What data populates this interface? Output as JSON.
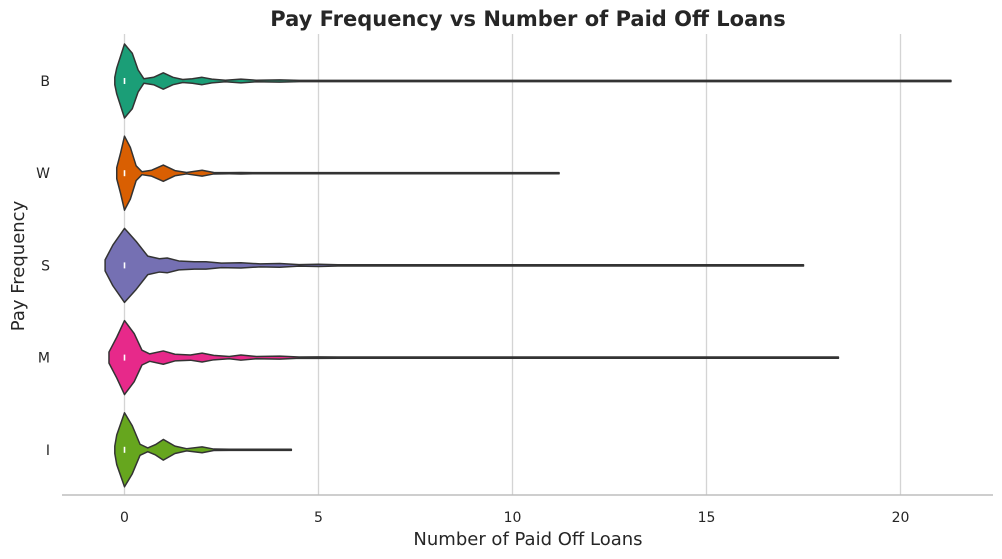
{
  "chart_data": {
    "type": "violin",
    "title": "Pay Frequency vs Number of Paid Off Loans",
    "xlabel": "Number of Paid Off Loans",
    "ylabel": "Pay Frequency",
    "xlim": [
      -1.6,
      22.5
    ],
    "xticks": [
      0,
      5,
      10,
      15,
      20
    ],
    "grid": "vertical",
    "categories": [
      "B",
      "W",
      "S",
      "M",
      "I"
    ],
    "series": [
      {
        "category": "B",
        "color": "#1b9e77",
        "max": 21.3,
        "median": 0,
        "profile": [
          [
            -0.25,
            0.1
          ],
          [
            -0.2,
            0.35
          ],
          [
            0,
            1.0
          ],
          [
            0.2,
            0.75
          ],
          [
            0.35,
            0.3
          ],
          [
            0.5,
            0.06
          ],
          [
            0.75,
            0.1
          ],
          [
            1,
            0.22
          ],
          [
            1.25,
            0.1
          ],
          [
            1.5,
            0.04
          ],
          [
            1.75,
            0.06
          ],
          [
            2,
            0.1
          ],
          [
            2.25,
            0.05
          ],
          [
            2.6,
            0.02
          ],
          [
            3,
            0.05
          ],
          [
            3.4,
            0.02
          ],
          [
            4,
            0.03
          ],
          [
            4.5,
            0.01
          ],
          [
            5,
            0.015
          ],
          [
            5.5,
            0.005
          ],
          [
            6,
            0.005
          ],
          [
            21.3,
            0.0
          ]
        ]
      },
      {
        "category": "W",
        "color": "#d95f02",
        "max": 11.2,
        "median": 0,
        "profile": [
          [
            -0.2,
            0.15
          ],
          [
            -0.1,
            0.55
          ],
          [
            0,
            1.0
          ],
          [
            0.15,
            0.7
          ],
          [
            0.3,
            0.2
          ],
          [
            0.45,
            0.04
          ],
          [
            0.7,
            0.08
          ],
          [
            1,
            0.22
          ],
          [
            1.3,
            0.07
          ],
          [
            1.6,
            0.02
          ],
          [
            2,
            0.08
          ],
          [
            2.3,
            0.02
          ],
          [
            2.7,
            0.005
          ],
          [
            3,
            0.02
          ],
          [
            3.3,
            0.005
          ],
          [
            11.2,
            0.0
          ]
        ]
      },
      {
        "category": "S",
        "color": "#7570b3",
        "max": 17.5,
        "median": 0,
        "profile": [
          [
            -0.5,
            0.15
          ],
          [
            -0.3,
            0.55
          ],
          [
            0,
            1.0
          ],
          [
            0.3,
            0.65
          ],
          [
            0.6,
            0.25
          ],
          [
            0.9,
            0.18
          ],
          [
            1.1,
            0.2
          ],
          [
            1.4,
            0.12
          ],
          [
            1.8,
            0.1
          ],
          [
            2.1,
            0.1
          ],
          [
            2.5,
            0.06
          ],
          [
            3,
            0.07
          ],
          [
            3.5,
            0.04
          ],
          [
            4,
            0.05
          ],
          [
            4.5,
            0.02
          ],
          [
            5,
            0.03
          ],
          [
            5.5,
            0.01
          ],
          [
            6,
            0.01
          ],
          [
            17.5,
            0.0
          ]
        ]
      },
      {
        "category": "M",
        "color": "#e7298a",
        "max": 18.4,
        "median": 0,
        "profile": [
          [
            -0.4,
            0.15
          ],
          [
            -0.2,
            0.55
          ],
          [
            0,
            1.0
          ],
          [
            0.25,
            0.65
          ],
          [
            0.45,
            0.2
          ],
          [
            0.65,
            0.1
          ],
          [
            1,
            0.18
          ],
          [
            1.3,
            0.09
          ],
          [
            1.7,
            0.07
          ],
          [
            2,
            0.12
          ],
          [
            2.3,
            0.06
          ],
          [
            2.7,
            0.03
          ],
          [
            3,
            0.07
          ],
          [
            3.4,
            0.03
          ],
          [
            4,
            0.04
          ],
          [
            4.5,
            0.015
          ],
          [
            5,
            0.02
          ],
          [
            5.5,
            0.005
          ],
          [
            18.4,
            0.0
          ]
        ]
      },
      {
        "category": "I",
        "color": "#66a61e",
        "max": 4.3,
        "median": 0,
        "profile": [
          [
            -0.25,
            0.1
          ],
          [
            -0.2,
            0.4
          ],
          [
            0,
            1.0
          ],
          [
            0.2,
            0.65
          ],
          [
            0.4,
            0.15
          ],
          [
            0.6,
            0.05
          ],
          [
            0.8,
            0.14
          ],
          [
            1,
            0.28
          ],
          [
            1.3,
            0.1
          ],
          [
            1.6,
            0.03
          ],
          [
            2,
            0.08
          ],
          [
            2.3,
            0.02
          ],
          [
            2.7,
            0.005
          ],
          [
            4.3,
            0.0
          ]
        ]
      }
    ]
  }
}
